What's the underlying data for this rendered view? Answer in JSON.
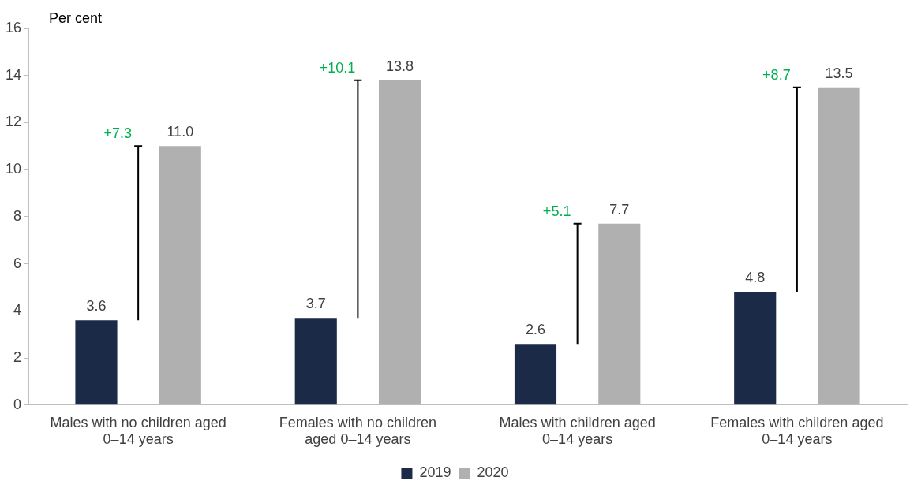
{
  "chart_data": {
    "type": "bar",
    "ylabel": "Per cent",
    "categories": [
      "Males with no children aged 0–14 years",
      "Females with no children aged 0–14 years",
      "Males with children aged 0–14 years",
      "Females with children aged 0–14 years"
    ],
    "series": [
      {
        "name": "2019",
        "color": "#1b2a47",
        "values": [
          3.6,
          3.7,
          2.6,
          4.8
        ],
        "value_labels": [
          "3.6",
          "3.7",
          "2.6",
          "4.8"
        ]
      },
      {
        "name": "2020",
        "color": "#b0b0b0",
        "values": [
          11.0,
          13.8,
          7.7,
          13.5
        ],
        "value_labels": [
          "11.0",
          "13.8",
          "7.7",
          "13.5"
        ]
      }
    ],
    "ylim": [
      0,
      16
    ],
    "yticks": [
      0,
      2,
      4,
      6,
      8,
      10,
      12,
      14,
      16
    ],
    "grid": false,
    "legend": "bottom",
    "annotations": [
      "+7.3",
      "+10.1",
      "+5.1",
      "+8.7"
    ]
  }
}
